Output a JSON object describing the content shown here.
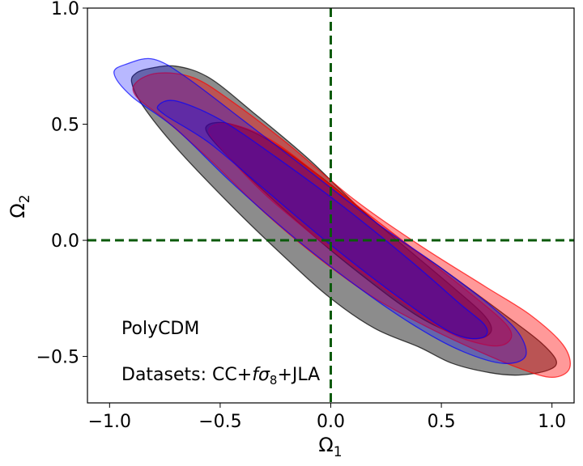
{
  "chart_data": {
    "type": "contour",
    "title": "",
    "xlabel": "Ω",
    "xlabel_sub": "1",
    "ylabel": "Ω",
    "ylabel_sub": "2",
    "xlim": [
      -1.1,
      1.1
    ],
    "ylim": [
      -0.7,
      1.0
    ],
    "xticks": [
      -1.0,
      -0.5,
      0.0,
      0.5,
      1.0
    ],
    "xtick_labels": [
      "−1.0",
      "−0.5",
      "0.0",
      "0.5",
      "1.0"
    ],
    "yticks": [
      -0.5,
      0.0,
      0.5,
      1.0
    ],
    "ytick_labels": [
      "−0.5",
      "0.0",
      "0.5",
      "1.0"
    ],
    "grid": false,
    "reference_lines": {
      "vertical_x": 0.0,
      "horizontal_y": 0.0,
      "color": "#0b5a0b",
      "style": "dashed"
    },
    "annotations": [
      {
        "text": "PolyCDM",
        "x": -0.95,
        "y": -0.4
      },
      {
        "text_prefix": "Datasets: CC+",
        "text_italic": "f",
        "text_sigma": "σ",
        "text_sub": "8",
        "text_suffix": "+JLA",
        "x": -0.95,
        "y": -0.6
      }
    ],
    "series": [
      {
        "color": "#000000",
        "fill_opacity": 0.45,
        "contours": [
          {
            "level": "outer",
            "points": [
              [
                -0.88,
                0.72
              ],
              [
                -0.82,
                0.74
              ],
              [
                -0.7,
                0.75
              ],
              [
                -0.55,
                0.7
              ],
              [
                -0.35,
                0.55
              ],
              [
                -0.1,
                0.35
              ],
              [
                0.2,
                0.08
              ],
              [
                0.5,
                -0.12
              ],
              [
                0.8,
                -0.33
              ],
              [
                0.95,
                -0.44
              ],
              [
                1.02,
                -0.52
              ],
              [
                0.98,
                -0.56
              ],
              [
                0.85,
                -0.58
              ],
              [
                0.72,
                -0.57
              ],
              [
                0.55,
                -0.53
              ],
              [
                0.4,
                -0.46
              ],
              [
                0.2,
                -0.38
              ],
              [
                0.0,
                -0.25
              ],
              [
                -0.2,
                -0.08
              ],
              [
                -0.45,
                0.15
              ],
              [
                -0.7,
                0.4
              ],
              [
                -0.85,
                0.58
              ],
              [
                -0.9,
                0.68
              ]
            ]
          },
          {
            "level": "inner",
            "points": [
              [
                -0.55,
                0.5
              ],
              [
                -0.45,
                0.5
              ],
              [
                -0.28,
                0.43
              ],
              [
                0.0,
                0.24
              ],
              [
                0.3,
                0.0
              ],
              [
                0.55,
                -0.2
              ],
              [
                0.7,
                -0.33
              ],
              [
                0.72,
                -0.4
              ],
              [
                0.62,
                -0.42
              ],
              [
                0.4,
                -0.33
              ],
              [
                0.1,
                -0.12
              ],
              [
                -0.15,
                0.08
              ],
              [
                -0.4,
                0.3
              ],
              [
                -0.55,
                0.45
              ]
            ]
          }
        ]
      },
      {
        "color": "#ff0000",
        "fill_opacity": 0.4,
        "contours": [
          {
            "level": "outer",
            "points": [
              [
                -0.88,
                0.68
              ],
              [
                -0.78,
                0.72
              ],
              [
                -0.62,
                0.7
              ],
              [
                -0.45,
                0.6
              ],
              [
                -0.2,
                0.42
              ],
              [
                0.1,
                0.18
              ],
              [
                0.4,
                -0.02
              ],
              [
                0.7,
                -0.2
              ],
              [
                0.9,
                -0.32
              ],
              [
                1.05,
                -0.45
              ],
              [
                1.08,
                -0.55
              ],
              [
                1.0,
                -0.59
              ],
              [
                0.85,
                -0.55
              ],
              [
                0.65,
                -0.47
              ],
              [
                0.45,
                -0.38
              ],
              [
                0.2,
                -0.25
              ],
              [
                -0.05,
                -0.08
              ],
              [
                -0.3,
                0.12
              ],
              [
                -0.55,
                0.35
              ],
              [
                -0.75,
                0.52
              ],
              [
                -0.88,
                0.62
              ]
            ]
          },
          {
            "level": "inner",
            "points": [
              [
                -0.55,
                0.48
              ],
              [
                -0.45,
                0.5
              ],
              [
                -0.25,
                0.42
              ],
              [
                0.05,
                0.2
              ],
              [
                0.35,
                -0.02
              ],
              [
                0.62,
                -0.22
              ],
              [
                0.8,
                -0.37
              ],
              [
                0.8,
                -0.44
              ],
              [
                0.7,
                -0.45
              ],
              [
                0.5,
                -0.38
              ],
              [
                0.2,
                -0.18
              ],
              [
                -0.05,
                0.0
              ],
              [
                -0.3,
                0.2
              ],
              [
                -0.5,
                0.4
              ]
            ]
          }
        ]
      },
      {
        "color": "#0000ff",
        "fill_opacity": 0.28,
        "contours": [
          {
            "level": "outer",
            "points": [
              [
                -0.98,
                0.72
              ],
              [
                -0.92,
                0.76
              ],
              [
                -0.8,
                0.78
              ],
              [
                -0.65,
                0.7
              ],
              [
                -0.4,
                0.52
              ],
              [
                -0.1,
                0.3
              ],
              [
                0.2,
                0.08
              ],
              [
                0.5,
                -0.12
              ],
              [
                0.72,
                -0.28
              ],
              [
                0.85,
                -0.4
              ],
              [
                0.88,
                -0.5
              ],
              [
                0.78,
                -0.53
              ],
              [
                0.6,
                -0.48
              ],
              [
                0.4,
                -0.38
              ],
              [
                0.15,
                -0.22
              ],
              [
                -0.15,
                0.0
              ],
              [
                -0.45,
                0.25
              ],
              [
                -0.7,
                0.48
              ],
              [
                -0.9,
                0.62
              ]
            ]
          },
          {
            "level": "inner",
            "points": [
              [
                -0.78,
                0.58
              ],
              [
                -0.7,
                0.6
              ],
              [
                -0.5,
                0.52
              ],
              [
                -0.25,
                0.36
              ],
              [
                0.05,
                0.15
              ],
              [
                0.35,
                -0.08
              ],
              [
                0.58,
                -0.27
              ],
              [
                0.7,
                -0.37
              ],
              [
                0.68,
                -0.42
              ],
              [
                0.55,
                -0.4
              ],
              [
                0.3,
                -0.24
              ],
              [
                0.0,
                -0.02
              ],
              [
                -0.3,
                0.22
              ],
              [
                -0.55,
                0.42
              ],
              [
                -0.75,
                0.54
              ]
            ]
          }
        ]
      }
    ]
  }
}
